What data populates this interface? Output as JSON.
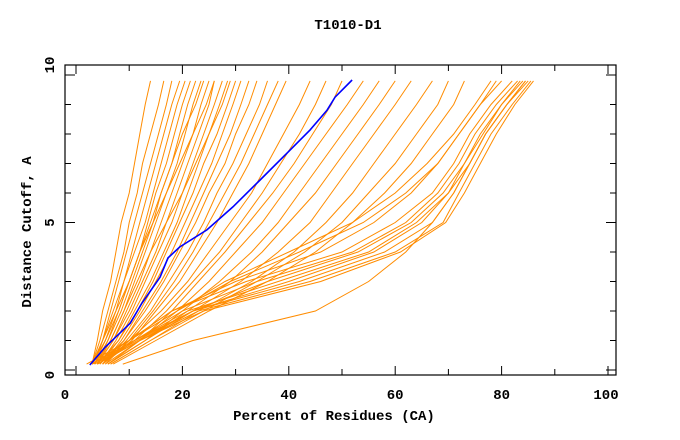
{
  "chart_data": {
    "type": "line",
    "title": "T1010-D1",
    "xlabel": "Percent of Residues (CA)",
    "ylabel": "Distance Cutoff, A",
    "xlim": [
      0,
      100
    ],
    "ylim": [
      0,
      10
    ],
    "xticks": [
      0,
      20,
      40,
      60,
      80,
      100
    ],
    "yticks": [
      0,
      5,
      10
    ],
    "grid": false,
    "colors": {
      "models": "#ff8c00",
      "highlight": "#0000ff",
      "axes": "#000000"
    },
    "y_levels": [
      0.2,
      1,
      2,
      3,
      4,
      5,
      6,
      7,
      8,
      9,
      9.8
    ],
    "highlight_series": {
      "x": [
        2.6,
        5.5,
        10.2,
        12.4,
        15.8,
        17.3,
        19.5,
        24.6,
        29.5,
        34.6,
        39.7,
        44.0,
        47.2,
        48.7,
        51.9
      ],
      "y": [
        0.17,
        0.78,
        1.59,
        2.27,
        3.15,
        3.8,
        4.17,
        4.75,
        5.53,
        6.44,
        7.36,
        8.14,
        8.81,
        9.25,
        9.83
      ]
    },
    "model_series_x": [
      [
        3,
        4,
        5,
        6.5,
        7.5,
        8.5,
        10,
        11,
        12,
        13,
        14
      ],
      [
        3,
        4.5,
        6,
        7.5,
        9,
        10,
        11.5,
        12.5,
        14,
        15.5,
        16.5
      ],
      [
        3.2,
        5,
        6.5,
        8,
        9.5,
        11,
        12.5,
        14,
        15.5,
        17,
        18
      ],
      [
        3.5,
        5,
        7,
        9,
        10.5,
        12,
        13.5,
        15,
        16.5,
        18,
        19.5
      ],
      [
        3,
        5.5,
        7.5,
        9,
        11,
        13,
        14.5,
        16,
        17.5,
        19,
        20.5
      ],
      [
        3.5,
        6,
        8,
        10,
        12,
        13.5,
        15,
        17,
        18.5,
        20,
        21.5
      ],
      [
        4,
        6,
        8.5,
        10.5,
        12.5,
        14.5,
        16,
        18,
        19.5,
        21,
        22.5
      ],
      [
        3.5,
        6.5,
        9,
        11,
        13,
        15,
        17,
        19,
        20.5,
        22,
        23.5
      ],
      [
        4,
        7,
        9.5,
        12,
        14,
        16,
        18,
        20,
        22,
        23.5,
        25
      ],
      [
        4,
        7,
        10,
        12.5,
        15,
        17,
        19,
        21,
        23,
        25,
        26
      ],
      [
        4.5,
        7.5,
        10.5,
        13,
        15.5,
        18,
        20,
        22,
        24,
        26,
        27.5
      ],
      [
        4,
        8,
        11,
        14,
        16.5,
        19,
        21,
        23,
        25,
        27,
        28.5
      ],
      [
        4.5,
        8,
        11.5,
        14.5,
        17,
        19.5,
        22,
        24,
        26.5,
        28.5,
        30
      ],
      [
        5,
        8.5,
        12,
        15,
        18,
        20.5,
        23,
        25.5,
        27.5,
        29.5,
        31
      ],
      [
        4.5,
        9,
        12.5,
        16,
        19,
        21.5,
        24,
        26.5,
        29,
        31,
        32.5
      ],
      [
        5,
        9,
        13,
        16.5,
        19.5,
        22.5,
        25,
        28,
        30,
        32.5,
        34
      ],
      [
        5,
        9.5,
        14,
        17.5,
        21,
        24,
        26.5,
        29.5,
        32,
        34.5,
        36
      ],
      [
        5.5,
        10,
        14.5,
        18.5,
        22,
        25,
        28,
        31,
        33.5,
        36,
        38
      ],
      [
        5,
        10.5,
        15,
        19.5,
        23,
        26.5,
        29.5,
        32.5,
        35,
        37.5,
        39.5
      ],
      [
        3.5,
        5.5,
        8,
        10,
        12,
        14,
        16,
        18,
        20,
        22.5,
        24
      ],
      [
        3,
        5,
        7.5,
        10,
        12,
        14.5,
        17,
        19.5,
        22,
        24.5,
        26
      ],
      [
        4,
        6.5,
        9,
        11.5,
        14,
        17,
        20,
        22.5,
        25,
        27.5,
        29
      ],
      [
        5,
        10,
        16,
        21,
        25,
        29,
        33,
        36,
        39,
        42,
        44
      ],
      [
        5,
        11,
        17,
        22,
        27,
        31,
        35,
        38.5,
        42,
        45,
        47
      ],
      [
        5.5,
        12,
        18,
        23,
        28,
        32.5,
        37,
        41,
        44.5,
        48,
        50
      ],
      [
        6,
        12,
        19,
        25,
        30,
        35,
        39,
        43,
        47,
        51,
        54
      ],
      [
        6,
        13,
        20,
        27,
        33,
        38,
        42,
        46,
        50,
        54,
        57
      ],
      [
        6,
        13,
        21,
        29,
        35,
        40,
        45,
        49,
        53,
        57,
        60
      ],
      [
        6,
        13,
        22,
        31,
        38,
        44,
        48,
        52,
        56,
        60,
        63
      ],
      [
        6.5,
        14,
        23,
        33,
        41,
        47,
        52,
        56,
        60,
        64,
        67
      ],
      [
        6.5,
        14,
        24,
        34,
        43,
        50,
        55,
        60,
        64,
        68,
        70
      ],
      [
        7,
        15,
        25,
        36,
        45,
        52,
        58,
        63,
        67,
        71,
        73
      ],
      [
        2,
        10,
        18,
        30,
        46,
        56,
        63,
        68,
        72,
        76,
        80
      ],
      [
        3,
        10,
        18,
        32,
        50,
        60,
        67,
        71,
        74,
        78,
        82
      ],
      [
        3,
        11,
        20,
        34,
        52,
        62,
        68,
        72,
        75,
        79,
        83
      ],
      [
        3,
        11,
        21,
        38,
        55,
        64,
        70,
        73,
        76,
        80,
        84
      ],
      [
        4,
        12,
        22,
        42,
        58,
        67,
        71,
        74,
        77,
        81,
        85
      ],
      [
        4,
        12,
        23,
        44,
        60,
        69,
        72,
        75,
        78,
        82,
        85.5
      ],
      [
        4,
        12,
        24,
        46,
        61,
        69.5,
        73,
        76,
        79,
        82.5,
        86
      ],
      [
        3,
        11,
        22,
        40,
        56,
        65,
        70,
        74,
        77,
        81,
        84.5
      ],
      [
        3.5,
        11.5,
        22,
        36,
        53,
        63,
        69,
        73,
        76.5,
        80,
        83.5
      ],
      [
        3,
        10,
        19,
        28,
        40,
        52,
        60,
        66,
        71,
        75,
        78
      ],
      [
        3,
        10,
        19,
        29,
        42,
        54,
        62,
        68,
        72,
        76,
        79
      ],
      [
        8.8,
        22,
        45,
        55,
        62,
        67,
        71,
        74,
        77,
        81,
        84.5
      ]
    ]
  }
}
